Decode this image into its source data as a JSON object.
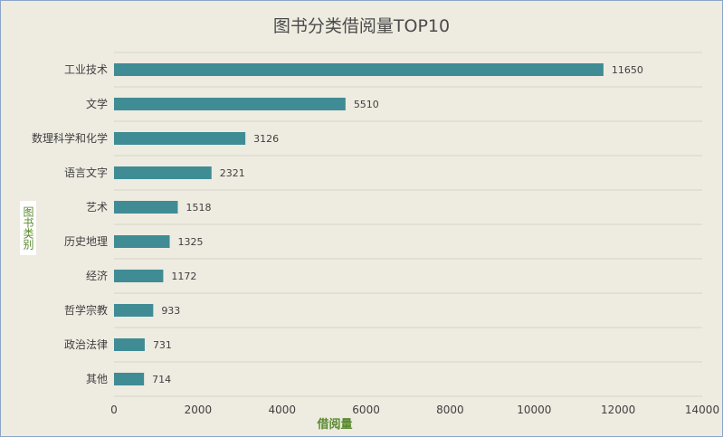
{
  "chart_data": {
    "type": "bar",
    "orientation": "horizontal",
    "title": "图书分类借阅量TOP10",
    "xlabel": "借阅量",
    "ylabel": "图书类别",
    "xlim": [
      0,
      14000
    ],
    "xticks": [
      0,
      2000,
      4000,
      6000,
      8000,
      10000,
      12000,
      14000
    ],
    "categories": [
      "工业技术",
      "文学",
      "数理科学和化学",
      "语言文字",
      "艺术",
      "历史地理",
      "经济",
      "哲学宗教",
      "政治法律",
      "其他"
    ],
    "values": [
      11650,
      5510,
      3126,
      2321,
      1518,
      1325,
      1172,
      933,
      731,
      714
    ],
    "data_labels": true,
    "grid": "horizontal",
    "colors": {
      "bar": "#3f8c94",
      "background": "#eeebe1",
      "grid": "#d6d3c8",
      "axis_title": "#5a8a2e"
    }
  }
}
